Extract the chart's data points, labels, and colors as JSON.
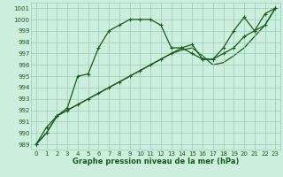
{
  "title": "Graphe pression niveau de la mer (hPa)",
  "bg_color": "#cceedd",
  "grid_color": "#99ccbb",
  "line_color": "#1a5c1a",
  "xlim": [
    -0.5,
    23.5
  ],
  "ylim": [
    988.5,
    1001.5
  ],
  "xticks": [
    0,
    1,
    2,
    3,
    4,
    5,
    6,
    7,
    8,
    9,
    10,
    11,
    12,
    13,
    14,
    15,
    16,
    17,
    18,
    19,
    20,
    21,
    22,
    23
  ],
  "yticks": [
    989,
    990,
    991,
    992,
    993,
    994,
    995,
    996,
    997,
    998,
    999,
    1000,
    1001
  ],
  "series1_x": [
    0,
    1,
    2,
    3,
    4,
    5,
    6,
    7,
    8,
    9,
    10,
    11,
    12,
    13,
    14,
    15,
    16,
    17,
    18,
    19,
    20,
    21,
    22,
    23
  ],
  "series1_y": [
    989.0,
    990.5,
    991.5,
    992.2,
    995.0,
    995.2,
    997.5,
    999.0,
    999.5,
    1000.0,
    1000.0,
    1000.0,
    999.5,
    997.5,
    997.5,
    997.0,
    996.5,
    996.5,
    997.5,
    999.0,
    1000.2,
    999.0,
    1000.5,
    1001.0
  ],
  "series2_x": [
    0,
    1,
    2,
    3,
    4,
    5,
    6,
    7,
    8,
    9,
    10,
    11,
    12,
    13,
    14,
    15,
    16,
    17,
    18,
    19,
    20,
    21,
    22,
    23
  ],
  "series2_y": [
    989.0,
    990.0,
    991.5,
    992.0,
    992.5,
    993.0,
    993.5,
    994.0,
    994.5,
    995.0,
    995.5,
    996.0,
    996.5,
    997.0,
    997.5,
    997.8,
    996.5,
    996.5,
    997.0,
    997.5,
    998.5,
    999.0,
    999.5,
    1001.0
  ],
  "series3_x": [
    0,
    1,
    2,
    3,
    4,
    5,
    6,
    7,
    8,
    9,
    10,
    11,
    12,
    13,
    14,
    15,
    16,
    17,
    18,
    19,
    20,
    21,
    22,
    23
  ],
  "series3_y": [
    989.0,
    990.0,
    991.5,
    992.0,
    992.5,
    993.0,
    993.5,
    994.0,
    994.5,
    995.0,
    995.5,
    996.0,
    996.5,
    997.0,
    997.3,
    997.5,
    996.8,
    996.0,
    996.2,
    996.8,
    997.5,
    998.5,
    999.5,
    1001.0
  ],
  "tick_fontsize": 5,
  "label_fontsize": 6,
  "linewidth": 0.9,
  "markersize": 3.5
}
